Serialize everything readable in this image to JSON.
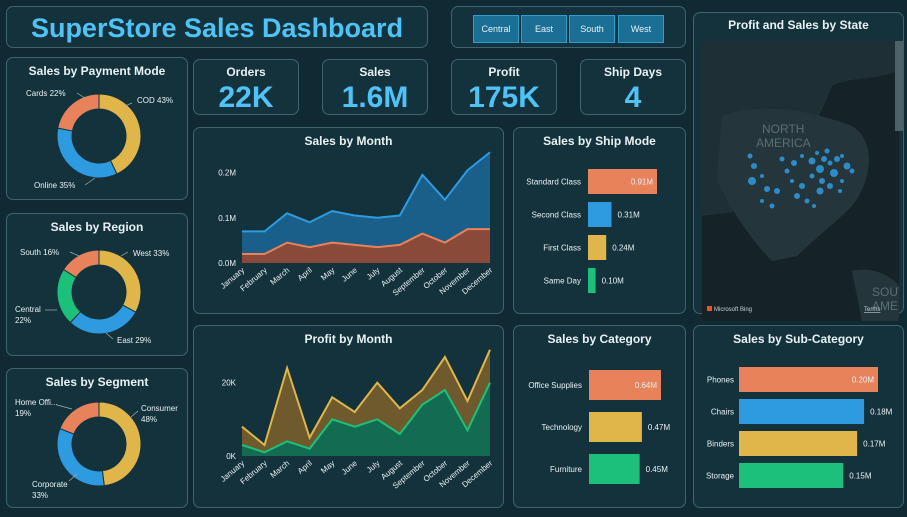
{
  "header": {
    "title": "SuperStore Sales Dashboard"
  },
  "region_filter": {
    "buttons": [
      "Central",
      "East",
      "South",
      "West"
    ]
  },
  "kpis": [
    {
      "label": "Orders",
      "value": "22K"
    },
    {
      "label": "Sales",
      "value": "1.6M"
    },
    {
      "label": "Profit",
      "value": "175K"
    },
    {
      "label": "Ship Days",
      "value": "4"
    }
  ],
  "map": {
    "title": "Profit and Sales by State",
    "labels": [
      "NORTH",
      "AMERICA",
      "SOUTH",
      "AME"
    ],
    "attribution": "Microsoft Bing",
    "terms": "Terms"
  },
  "colors": {
    "orange": "#e8825a",
    "gold": "#e0b64a",
    "blue": "#2e9be0",
    "green": "#1cc07a",
    "accent": "#4fc3f7"
  },
  "chart_data": [
    {
      "id": "payment",
      "type": "pie",
      "title": "Sales by Payment Mode",
      "slices": [
        {
          "label": "COD 43%",
          "value": 43
        },
        {
          "label": "Online 35%",
          "value": 35
        },
        {
          "label": "Cards 22%",
          "value": 22
        }
      ]
    },
    {
      "id": "region",
      "type": "pie",
      "title": "Sales by Region",
      "slices": [
        {
          "label": "West 33%",
          "value": 33
        },
        {
          "label": "East 29%",
          "value": 29
        },
        {
          "label": "Central 22%",
          "value": 22
        },
        {
          "label": "South 16%",
          "value": 16
        }
      ]
    },
    {
      "id": "segment",
      "type": "pie",
      "title": "Sales by Segment",
      "slices": [
        {
          "label": "Consumer 48%",
          "value": 48
        },
        {
          "label": "Corporate 33%",
          "value": 33
        },
        {
          "label": "Home Offi... 19%",
          "value": 19
        }
      ]
    },
    {
      "id": "sales_month",
      "type": "area",
      "title": "Sales by Month",
      "categories": [
        "January",
        "February",
        "March",
        "April",
        "May",
        "June",
        "July",
        "August",
        "September",
        "October",
        "November",
        "December"
      ],
      "ylim": [
        0,
        0.25
      ],
      "yticks": [
        "0.0M",
        "0.1M",
        "0.2M"
      ],
      "series": [
        {
          "values": [
            0.07,
            0.07,
            0.11,
            0.09,
            0.115,
            0.105,
            0.1,
            0.105,
            0.195,
            0.14,
            0.205,
            0.245
          ]
        },
        {
          "values": [
            0.02,
            0.02,
            0.045,
            0.035,
            0.045,
            0.04,
            0.035,
            0.04,
            0.065,
            0.045,
            0.075,
            0.075
          ]
        }
      ]
    },
    {
      "id": "profit_month",
      "type": "area",
      "title": "Profit by Month",
      "categories": [
        "January",
        "February",
        "March",
        "April",
        "May",
        "June",
        "July",
        "August",
        "September",
        "October",
        "November",
        "December"
      ],
      "ylim": [
        0,
        30000
      ],
      "yticks": [
        "0K",
        "20K"
      ],
      "series": [
        {
          "values": [
            8000,
            3000,
            24000,
            5000,
            16000,
            12000,
            20000,
            13000,
            18000,
            27000,
            15000,
            29000
          ]
        },
        {
          "values": [
            3000,
            1000,
            4000,
            2000,
            10000,
            8000,
            10000,
            6000,
            14000,
            18000,
            7000,
            20000
          ]
        }
      ]
    },
    {
      "id": "ship_mode",
      "type": "bar",
      "title": "Sales by Ship Mode",
      "categories": [
        "Standard Class",
        "Second Class",
        "First Class",
        "Same Day"
      ],
      "values": [
        0.91,
        0.31,
        0.24,
        0.1
      ],
      "labels": [
        "0.91M",
        "0.31M",
        "0.24M",
        "0.10M"
      ]
    },
    {
      "id": "category",
      "type": "bar",
      "title": "Sales by Category",
      "categories": [
        "Office Supplies",
        "Technology",
        "Furniture"
      ],
      "values": [
        0.64,
        0.47,
        0.45
      ],
      "labels": [
        "0.64M",
        "0.47M",
        "0.45M"
      ]
    },
    {
      "id": "subcategory",
      "type": "bar",
      "title": "Sales by Sub-Category",
      "categories": [
        "Phones",
        "Chairs",
        "Binders",
        "Storage"
      ],
      "values": [
        0.2,
        0.18,
        0.17,
        0.15
      ],
      "labels": [
        "0.20M",
        "0.18M",
        "0.17M",
        "0.15M"
      ]
    }
  ]
}
